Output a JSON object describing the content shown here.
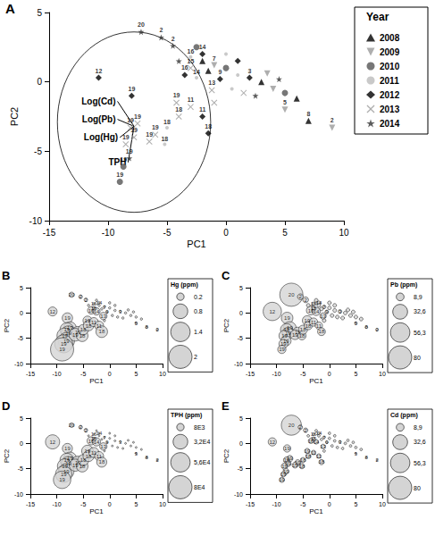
{
  "chart_data": [
    {
      "type": "scatter",
      "title": "A",
      "x_label": "PC1",
      "y_label": "PC2",
      "xlim": [
        -15,
        10
      ],
      "ylim": [
        -10,
        5
      ],
      "xticks": [
        -15,
        -10,
        -5,
        0,
        5,
        10
      ],
      "yticks": [
        -10,
        -5,
        0,
        5
      ],
      "grid": false,
      "legend": "upper right",
      "legend_title": "Year",
      "series": [
        {
          "name": "2008",
          "color": "#000000",
          "marker": "triangle",
          "x": [
            7.0,
            -2.0,
            3.0,
            -1.5,
            6.0
          ],
          "y": [
            -2.8,
            1.5,
            0.0,
            0.8,
            -1.2
          ],
          "labels": [
            "8",
            null,
            null,
            null,
            null
          ]
        },
        {
          "name": "2009",
          "color": "#9a9a9a",
          "marker": "triangle-down",
          "x": [
            9.0,
            5.0,
            -1.0,
            4.0,
            3.5
          ],
          "y": [
            -3.3,
            -2.0,
            1.2,
            -0.5,
            0.6
          ],
          "labels": [
            "2",
            "5",
            "7",
            null,
            null
          ]
        },
        {
          "name": "2010",
          "color": "#555555",
          "marker": "circle",
          "x": [
            -8.7,
            -9.0,
            0.0,
            5.0,
            -2.5
          ],
          "y": [
            -6.1,
            -7.2,
            1.0,
            -0.8,
            2.5
          ],
          "labels": [
            "19",
            "19",
            null,
            null,
            null
          ]
        },
        {
          "name": "2011",
          "color": "#bbbbbb",
          "marker": "dot",
          "x": [
            -5.2,
            -5.0,
            -2.5,
            -3.0,
            1.0,
            0.5,
            0.0
          ],
          "y": [
            -4.5,
            -3.3,
            0.3,
            1.8,
            0.5,
            -0.5,
            2.0
          ],
          "labels": [
            "18",
            "18",
            "14",
            "16",
            null,
            null,
            null
          ]
        },
        {
          "name": "2012",
          "color": "#000000",
          "marker": "diamond",
          "x": [
            -10.8,
            -8.0,
            -2.0,
            -1.5,
            -3.5,
            -2.0,
            2.0,
            -0.5,
            1.0
          ],
          "y": [
            0.3,
            -1.0,
            -2.5,
            -3.7,
            0.5,
            2.0,
            0.3,
            0.2,
            1.5
          ],
          "labels": [
            "12",
            "19",
            "11",
            "18",
            "16",
            "14",
            "3",
            "9",
            null
          ]
        },
        {
          "name": "2013",
          "color": "#999999",
          "marker": "cross",
          "x": [
            -7.5,
            -8.1,
            -7.8,
            -8.5,
            -6.0,
            -6.5,
            -4.2,
            -4.0,
            -3.0,
            -1.2,
            -3.0,
            1.5,
            -1.0
          ],
          "y": [
            -3.0,
            -3.3,
            -4.0,
            -4.5,
            -3.8,
            -4.3,
            -1.5,
            -2.5,
            -1.8,
            -0.6,
            1.0,
            -0.8,
            -1.5
          ],
          "labels": [
            "19",
            "19",
            "19",
            "19",
            "19",
            "19",
            "19",
            "18",
            "11",
            "13",
            "15",
            null,
            null
          ]
        },
        {
          "name": "2014",
          "color": "#333333",
          "marker": "star",
          "x": [
            -8.2,
            -7.2,
            -5.5,
            -4.5,
            -4.0,
            2.5,
            4.5
          ],
          "y": [
            -5.5,
            3.6,
            3.2,
            2.6,
            1.5,
            -1.0,
            0.2
          ],
          "labels": [
            "19",
            "20",
            "2",
            "2",
            null,
            null,
            null
          ]
        }
      ],
      "circle": {
        "center": [
          -7.8,
          -2.9
        ],
        "radius": 6.5
      },
      "loadings": {
        "origin": [
          -7.8,
          -3.2
        ],
        "arrows": [
          {
            "label": "Log(Cd)",
            "x": -9.2,
            "y": -1.4
          },
          {
            "label": "Log(Pb)",
            "x": -9.2,
            "y": -2.7
          },
          {
            "label": "Log(Hg)",
            "x": -9.0,
            "y": -4.0
          },
          {
            "label": "TPH",
            "x": -8.3,
            "y": -5.8
          }
        ]
      }
    },
    {
      "type": "bubble",
      "title": "B",
      "x_label": "PC1",
      "y_label": "PC2",
      "xlim": [
        -15,
        10
      ],
      "ylim": [
        -10,
        5
      ],
      "xticks": [
        -15,
        -10,
        -5,
        0,
        5,
        10
      ],
      "yticks": [
        -10,
        -5,
        0,
        5
      ],
      "grid": false,
      "x": [
        -10.8,
        -8.0,
        -7.5,
        -8.1,
        -7.8,
        -8.5,
        -8.2,
        -8.7,
        -9.0,
        -6.0,
        -6.5,
        -5.2,
        -5.0,
        -4.2,
        -4.0,
        -3.0,
        -2.0,
        -1.5,
        -7.2,
        -5.5,
        -4.5,
        -3.5,
        -2.5,
        -1.2,
        7.0,
        9.0,
        5.0,
        -3.0,
        -2.0,
        -4.0,
        -3.0,
        -2.0,
        -1.0,
        0.0,
        1.0,
        2.0,
        3.0,
        4.0,
        5.0,
        0.5,
        -0.5,
        1.5,
        2.5,
        -1.5,
        3.5,
        -2.5,
        0.0,
        1.0,
        -1.0,
        4.5,
        6.0
      ],
      "y": [
        0.3,
        -1.0,
        -3.0,
        -3.3,
        -4.0,
        -4.5,
        -5.5,
        -6.1,
        -7.2,
        -3.8,
        -4.3,
        -4.5,
        -3.3,
        -1.5,
        -2.5,
        -1.8,
        -2.5,
        -3.7,
        3.6,
        3.2,
        2.6,
        0.5,
        0.3,
        -0.6,
        -2.8,
        -3.3,
        -2.0,
        1.8,
        2.0,
        1.5,
        1.0,
        1.5,
        1.2,
        1.0,
        0.5,
        0.3,
        0.0,
        -0.5,
        -0.8,
        -0.5,
        0.2,
        -0.8,
        -1.0,
        0.8,
        0.6,
        2.5,
        2.0,
        1.5,
        -1.5,
        0.2,
        -1.2
      ],
      "labels": [
        "12",
        "19",
        "19",
        "19",
        "19",
        "19",
        "19",
        "19",
        "19",
        "19",
        "19",
        "18",
        "18",
        "19",
        "18",
        "11",
        "11",
        "18",
        "20",
        "2",
        "2",
        "16",
        "14",
        "13",
        "8",
        "2",
        "5",
        "16",
        "14",
        null,
        "15",
        null,
        "7",
        null,
        null,
        "3",
        null,
        null,
        null,
        null,
        "9",
        null,
        null,
        null,
        null,
        null,
        null,
        null,
        null,
        null,
        null
      ],
      "sizes": [
        0.3,
        0.4,
        0.6,
        0.7,
        0.8,
        0.9,
        1.0,
        1.2,
        2.0,
        0.5,
        0.6,
        0.5,
        0.4,
        0.3,
        0.4,
        0.3,
        0.3,
        0.5,
        0.1,
        0.05,
        0.05,
        0.2,
        0.2,
        0.2,
        0.02,
        0.02,
        0.02,
        0.02,
        0.02,
        0.02,
        0.02,
        0.02,
        0.02,
        0.02,
        0.02,
        0.02,
        0.02,
        0.02,
        0.02,
        0.02,
        0.02,
        0.02,
        0.02,
        0.02,
        0.02,
        0.02,
        0.02,
        0.02,
        0.02,
        0.02,
        0.02
      ],
      "size_title": "Hg (ppm)",
      "size_legend": [
        0.2,
        0.8,
        1.4,
        2
      ]
    },
    {
      "type": "bubble",
      "title": "C",
      "x_label": "PC1",
      "y_label": "PC2",
      "xlim": [
        -15,
        10
      ],
      "ylim": [
        -10,
        5
      ],
      "xticks": [
        -15,
        -10,
        -5,
        0,
        5,
        10
      ],
      "yticks": [
        -10,
        -5,
        0,
        5
      ],
      "grid": false,
      "x": [
        -10.8,
        -8.0,
        -7.5,
        -8.1,
        -7.8,
        -8.5,
        -8.2,
        -8.7,
        -9.0,
        -6.0,
        -6.5,
        -5.2,
        -5.0,
        -4.2,
        -4.0,
        -3.0,
        -2.0,
        -1.5,
        -7.2,
        -5.5,
        -4.5,
        -3.5,
        -2.5,
        -1.2,
        7.0,
        9.0,
        5.0,
        -3.0,
        -2.0,
        -4.0,
        -3.0,
        -2.0,
        -1.0,
        0.0,
        1.0,
        2.0,
        3.0,
        4.0,
        5.0,
        0.5,
        -0.5,
        1.5,
        2.5,
        -1.5,
        3.5,
        -2.5,
        0.0,
        1.0,
        -1.0,
        4.5,
        6.0
      ],
      "y": [
        0.3,
        -1.0,
        -3.0,
        -3.3,
        -4.0,
        -4.5,
        -5.5,
        -6.1,
        -7.2,
        -3.8,
        -4.3,
        -4.5,
        -3.3,
        -1.5,
        -2.5,
        -1.8,
        -2.5,
        -3.7,
        3.6,
        3.2,
        2.6,
        0.5,
        0.3,
        -0.6,
        -2.8,
        -3.3,
        -2.0,
        1.8,
        2.0,
        1.5,
        1.0,
        1.5,
        1.2,
        1.0,
        0.5,
        0.3,
        0.0,
        -0.5,
        -0.8,
        -0.5,
        0.2,
        -0.8,
        -1.0,
        0.8,
        0.6,
        2.5,
        2.0,
        1.5,
        -1.5,
        0.2,
        -1.2
      ],
      "labels": [
        "12",
        "19",
        "19",
        "19",
        "19",
        "19",
        "19",
        "19",
        "19",
        "19",
        "19",
        "18",
        "18",
        "19",
        "18",
        "11",
        "11",
        "18",
        "20",
        "2",
        "2",
        "16",
        "14",
        "13",
        "8",
        "2",
        "5",
        "16",
        "14",
        null,
        "15",
        null,
        "7",
        null,
        null,
        "3",
        null,
        null,
        null,
        null,
        "9",
        null,
        null,
        null,
        null,
        null,
        null,
        null,
        null,
        null,
        null
      ],
      "sizes": [
        50,
        20,
        25,
        22,
        20,
        18,
        15,
        12,
        10,
        15,
        14,
        10,
        12,
        14,
        10,
        10,
        8,
        9,
        80,
        5,
        5,
        12,
        10,
        6,
        1,
        1,
        1,
        2,
        2,
        2,
        2,
        2,
        2,
        2,
        2,
        2,
        2,
        2,
        2,
        2,
        2,
        2,
        2,
        2,
        2,
        2,
        2,
        2,
        2,
        2,
        2
      ],
      "size_title": "Pb (ppm)",
      "size_legend": [
        {
          "value": 8.9,
          "label": "8,9"
        },
        {
          "value": 32.6,
          "label": "32,6"
        },
        {
          "value": 56.3,
          "label": "56,3"
        },
        80
      ]
    },
    {
      "type": "bubble",
      "title": "D",
      "x_label": "PC1",
      "y_label": "PC2",
      "xlim": [
        -15,
        10
      ],
      "ylim": [
        -10,
        5
      ],
      "xticks": [
        -15,
        -10,
        -5,
        0,
        5,
        10
      ],
      "yticks": [
        -10,
        -5,
        0,
        5
      ],
      "grid": false,
      "x": [
        -10.8,
        -8.0,
        -7.5,
        -8.1,
        -7.8,
        -8.5,
        -8.2,
        -8.7,
        -9.0,
        -6.0,
        -6.5,
        -5.2,
        -5.0,
        -4.2,
        -4.0,
        -3.0,
        -2.0,
        -1.5,
        -7.2,
        -5.5,
        -4.5,
        -3.5,
        -2.5,
        -1.2,
        7.0,
        9.0,
        5.0,
        -3.0,
        -2.0,
        -4.0,
        -3.0,
        -2.0,
        -1.0,
        0.0,
        1.0,
        2.0,
        3.0,
        4.0,
        5.0,
        0.5,
        -0.5,
        1.5,
        2.5,
        -1.5,
        3.5,
        -2.5,
        0.0,
        1.0,
        -1.0,
        4.5,
        6.0
      ],
      "y": [
        0.3,
        -1.0,
        -3.0,
        -3.3,
        -4.0,
        -4.5,
        -5.5,
        -6.1,
        -7.2,
        -3.8,
        -4.3,
        -4.5,
        -3.3,
        -1.5,
        -2.5,
        -1.8,
        -2.5,
        -3.7,
        3.6,
        3.2,
        2.6,
        0.5,
        0.3,
        -0.6,
        -2.8,
        -3.3,
        -2.0,
        1.8,
        2.0,
        1.5,
        1.0,
        1.5,
        1.2,
        1.0,
        0.5,
        0.3,
        0.0,
        -0.5,
        -0.8,
        -0.5,
        0.2,
        -0.8,
        -1.0,
        0.8,
        0.6,
        2.5,
        2.0,
        1.5,
        -1.5,
        0.2,
        -1.2
      ],
      "labels": [
        "12",
        "19",
        "19",
        "19",
        "19",
        "19",
        "19",
        "19",
        "19",
        "19",
        "19",
        "18",
        "18",
        "19",
        "18",
        "11",
        "11",
        "18",
        "20",
        "2",
        "2",
        "16",
        "14",
        "13",
        "8",
        "2",
        "5",
        "16",
        "14",
        null,
        "15",
        null,
        "7",
        null,
        null,
        "3",
        null,
        null,
        null,
        null,
        "9",
        null,
        null,
        null,
        null,
        null,
        null,
        null,
        null,
        null,
        null
      ],
      "sizes": [
        30000,
        15000,
        25000,
        28000,
        30000,
        32000,
        35000,
        40000,
        45000,
        25000,
        22000,
        20000,
        18000,
        20000,
        18000,
        15000,
        12000,
        15000,
        3000,
        2000,
        2000,
        10000,
        10000,
        8000,
        100,
        100,
        100,
        500,
        500,
        500,
        500,
        500,
        500,
        500,
        500,
        500,
        500,
        500,
        500,
        500,
        500,
        500,
        500,
        500,
        500,
        500,
        500,
        500,
        500,
        500,
        500
      ],
      "size_title": "TPH (ppm)",
      "size_legend": [
        {
          "value": 8000,
          "label": "8E3"
        },
        {
          "value": 32000,
          "label": "3,2E4"
        },
        {
          "value": 56000,
          "label": "5,6E4"
        },
        {
          "value": 80000,
          "label": "8E4"
        }
      ]
    },
    {
      "type": "bubble",
      "title": "E",
      "x_label": "PC1",
      "y_label": "PC2",
      "xlim": [
        -15,
        10
      ],
      "ylim": [
        -10,
        5
      ],
      "xticks": [
        -15,
        -10,
        -5,
        0,
        5,
        10
      ],
      "yticks": [
        -10,
        -5,
        0,
        5
      ],
      "grid": false,
      "x": [
        -10.8,
        -8.0,
        -7.5,
        -8.1,
        -7.8,
        -8.5,
        -8.2,
        -8.7,
        -9.0,
        -6.0,
        -6.5,
        -5.2,
        -5.0,
        -4.2,
        -4.0,
        -3.0,
        -2.0,
        -1.5,
        -7.2,
        -5.5,
        -4.5,
        -3.5,
        -2.5,
        -1.2,
        7.0,
        9.0,
        5.0,
        -3.0,
        -2.0,
        -4.0,
        -3.0,
        -2.0,
        -1.0,
        0.0,
        1.0,
        2.0,
        3.0,
        4.0,
        5.0,
        0.5,
        -0.5,
        1.5,
        2.5,
        -1.5,
        3.5,
        -2.5,
        0.0,
        1.0,
        -1.0,
        4.5,
        6.0
      ],
      "y": [
        0.3,
        -1.0,
        -3.0,
        -3.3,
        -4.0,
        -4.5,
        -5.5,
        -6.1,
        -7.2,
        -3.8,
        -4.3,
        -4.5,
        -3.3,
        -1.5,
        -2.5,
        -1.8,
        -2.5,
        -3.7,
        3.6,
        3.2,
        2.6,
        0.5,
        0.3,
        -0.6,
        -2.8,
        -3.3,
        -2.0,
        1.8,
        2.0,
        1.5,
        1.0,
        1.5,
        1.2,
        1.0,
        0.5,
        0.3,
        0.0,
        -0.5,
        -0.8,
        -0.5,
        0.2,
        -0.8,
        -1.0,
        0.8,
        0.6,
        2.5,
        2.0,
        1.5,
        -1.5,
        0.2,
        -1.2
      ],
      "labels": [
        "12",
        "19",
        "19",
        "19",
        "19",
        "19",
        "19",
        "19",
        "19",
        "19",
        "19",
        "18",
        "18",
        "19",
        "18",
        "11",
        "11",
        "18",
        "20",
        "2",
        "2",
        "16",
        "14",
        "13",
        "8",
        "2",
        "5",
        "16",
        "14",
        null,
        "15",
        null,
        "7",
        null,
        null,
        "3",
        null,
        null,
        null,
        null,
        "9",
        null,
        null,
        null,
        null,
        null,
        null,
        null,
        null,
        null,
        null
      ],
      "sizes": [
        10,
        8,
        6,
        6,
        5,
        6,
        5,
        4,
        4,
        5,
        5,
        4,
        4,
        4,
        4,
        3,
        3,
        4,
        60,
        3,
        3,
        4,
        3,
        3,
        0.5,
        0.5,
        0.5,
        1,
        1,
        1,
        1,
        1,
        1,
        1,
        1,
        1,
        1,
        1,
        1,
        1,
        1,
        1,
        1,
        1,
        1,
        1,
        1,
        1,
        1,
        1,
        1
      ],
      "size_title": "Cd (ppm)",
      "size_legend": [
        {
          "value": 8.9,
          "label": "8,9"
        },
        {
          "value": 32.6,
          "label": "32,6"
        },
        {
          "value": 56.3,
          "label": "56,3"
        },
        80
      ]
    }
  ]
}
